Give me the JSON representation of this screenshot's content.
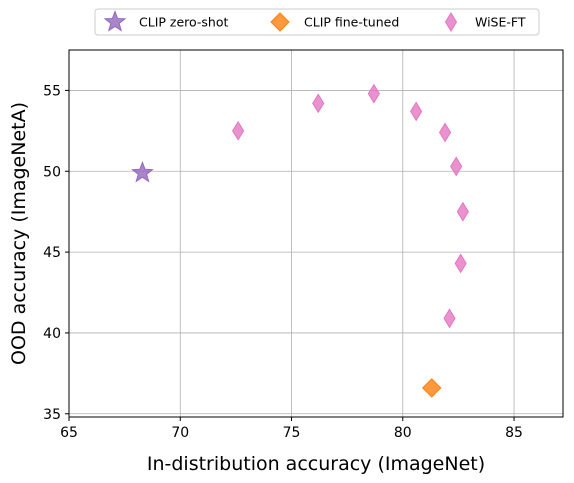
{
  "chart_data": {
    "type": "scatter",
    "title": "",
    "xlabel": "In-distribution accuracy (ImageNet)",
    "ylabel": "OOD accuracy (ImageNetA)",
    "xlim": [
      65.0,
      87.2
    ],
    "ylim": [
      34.8,
      57.5
    ],
    "xticks": [
      65,
      70,
      75,
      80,
      85
    ],
    "yticks": [
      35,
      40,
      45,
      50,
      55
    ],
    "grid": true,
    "legend_position": "top",
    "series": [
      {
        "name": "CLIP zero-shot",
        "marker": "star",
        "color": "#9467bd",
        "points": [
          {
            "x": 68.3,
            "y": 49.9
          }
        ]
      },
      {
        "name": "CLIP fine-tuned",
        "marker": "diamond",
        "color": "#ff7f0e",
        "points": [
          {
            "x": 81.3,
            "y": 36.6
          }
        ]
      },
      {
        "name": "WiSE-FT",
        "marker": "thin-diamond",
        "color": "#e377c2",
        "points": [
          {
            "x": 72.6,
            "y": 52.5
          },
          {
            "x": 76.2,
            "y": 54.2
          },
          {
            "x": 78.7,
            "y": 54.8
          },
          {
            "x": 80.6,
            "y": 53.7
          },
          {
            "x": 81.9,
            "y": 52.4
          },
          {
            "x": 82.4,
            "y": 50.3
          },
          {
            "x": 82.7,
            "y": 47.5
          },
          {
            "x": 82.6,
            "y": 44.3
          },
          {
            "x": 82.1,
            "y": 40.9
          }
        ]
      }
    ]
  }
}
